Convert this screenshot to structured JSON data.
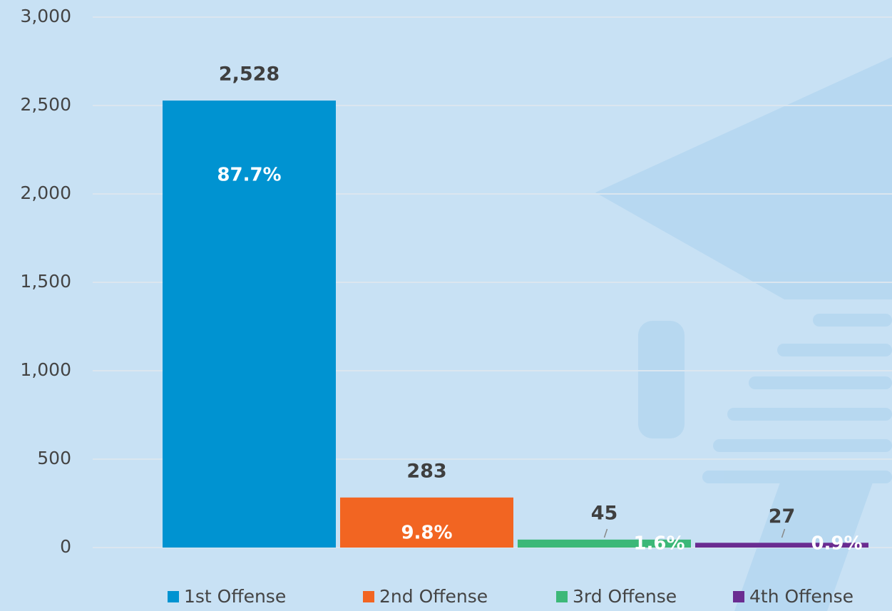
{
  "chart_data": {
    "type": "bar",
    "series": [
      {
        "name": "1st Offense",
        "color": "#0093d1",
        "values": [
          2528
        ],
        "value_labels": [
          "2,528"
        ],
        "shares": [
          87.7
        ],
        "share_labels": [
          "87.7%"
        ]
      },
      {
        "name": "2nd Offense",
        "color": "#f26522",
        "values": [
          283
        ],
        "value_labels": [
          "283"
        ],
        "shares": [
          9.8
        ],
        "share_labels": [
          "9.8%"
        ]
      },
      {
        "name": "3rd Offense",
        "color": "#3cb878",
        "values": [
          45
        ],
        "value_labels": [
          "45"
        ],
        "shares": [
          1.6
        ],
        "share_labels": [
          "1.6%"
        ]
      },
      {
        "name": "4th Offense",
        "color": "#6a2c91",
        "values": [
          27
        ],
        "value_labels": [
          "27"
        ],
        "shares": [
          0.9
        ],
        "share_labels": [
          "0.9%"
        ]
      }
    ],
    "ylim": [
      0,
      3000
    ],
    "yticks": [
      0,
      500,
      {
        "value": 1000,
        "label": "1,000"
      },
      {
        "value": 1500,
        "label": "1,500"
      },
      {
        "value": 2000,
        "label": "2,000"
      },
      {
        "value": 2500,
        "label": "2,500"
      },
      {
        "value": 3000,
        "label": "3,000"
      }
    ],
    "grid": true
  }
}
